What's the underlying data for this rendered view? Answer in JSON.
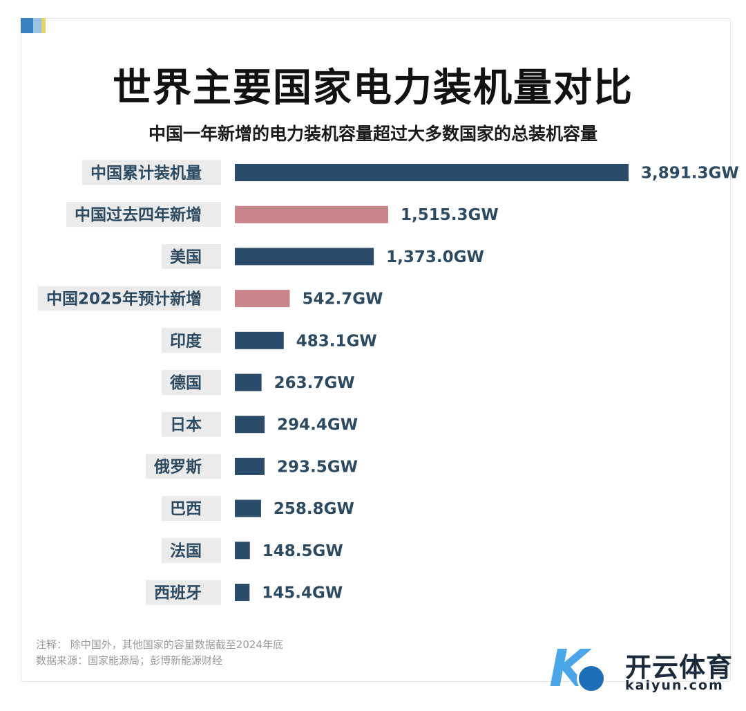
{
  "title": "世界主要国家电力装机量对比",
  "subtitle": "中国一年新增的电力装机容量超过大多数国家的总装机容量",
  "notes": {
    "note": "注释： 除中国外，其他国家的容量数据截至2024年底",
    "source": "数据来源：国家能源局；彭博新能源财经"
  },
  "watermark": {
    "brand": "开云体育",
    "url": "kaiyun.com",
    "logo_letter": "K"
  },
  "colors": {
    "navy": "#2b4b6b",
    "pink": "#c9868a",
    "label_bg": "#ebebeb",
    "label_text": "#2d4a63"
  },
  "chart_data": {
    "type": "bar",
    "orientation": "horizontal",
    "unit": "GW",
    "categories": [
      "中国累计装机量",
      "中国过去四年新增",
      "美国",
      "中国2025年预计新增",
      "印度",
      "德国",
      "日本",
      "俄罗斯",
      "巴西",
      "法国",
      "西班牙"
    ],
    "values": [
      3891.3,
      1515.3,
      1373.0,
      542.7,
      483.1,
      263.7,
      294.4,
      293.5,
      258.8,
      148.5,
      145.4
    ],
    "value_labels": [
      "3,891.3GW",
      "1,515.3GW",
      "1,373.0GW",
      "542.7GW",
      "483.1GW",
      "263.7GW",
      "294.4GW",
      "293.5GW",
      "258.8GW",
      "148.5GW",
      "145.4GW"
    ],
    "highlight": [
      false,
      true,
      false,
      true,
      false,
      false,
      false,
      false,
      false,
      false,
      false
    ],
    "xlim": [
      0,
      3891.3
    ],
    "grid": false,
    "legend": "none"
  }
}
